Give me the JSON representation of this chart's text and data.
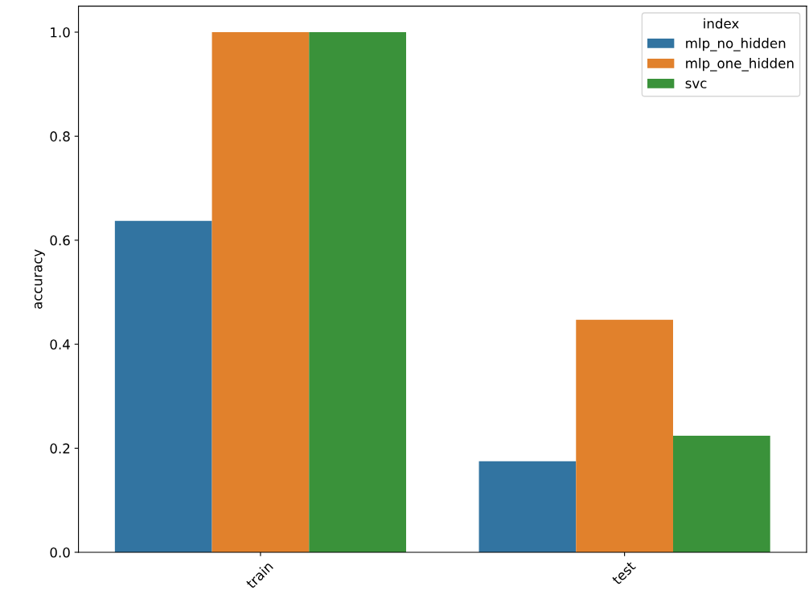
{
  "chart_data": {
    "type": "bar",
    "ylabel": "accuracy",
    "categories": [
      "train",
      "test"
    ],
    "series": [
      {
        "name": "mlp_no_hidden",
        "color": "#3274a1",
        "values": [
          0.637,
          0.175
        ]
      },
      {
        "name": "mlp_one_hidden",
        "color": "#e1812c",
        "values": [
          1.0,
          0.447
        ]
      },
      {
        "name": "svc",
        "color": "#3a923a",
        "values": [
          1.0,
          0.224
        ]
      }
    ],
    "ylim": [
      0,
      1.05
    ],
    "yticks": [
      {
        "value": 0,
        "label": "0.0"
      },
      {
        "value": 0.2,
        "label": "0.2"
      },
      {
        "value": 0.4,
        "label": "0.4"
      },
      {
        "value": 0.6,
        "label": "0.6"
      },
      {
        "value": 0.8,
        "label": "0.8"
      },
      {
        "value": 1.0,
        "label": "1.0"
      }
    ],
    "legend": "top right",
    "legend_title": "index",
    "grid": false
  }
}
